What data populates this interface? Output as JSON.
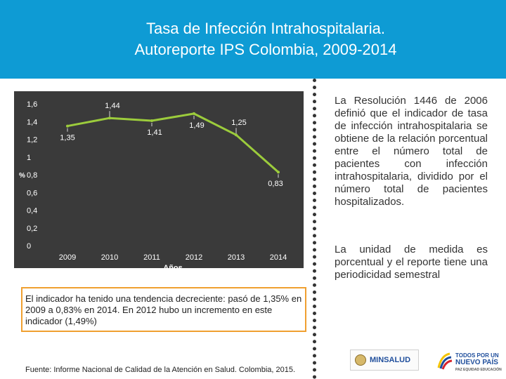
{
  "header": {
    "title_line1": "Tasa de Infección Intrahospitalaria.",
    "title_line2": "Autoreporte IPS Colombia, 2009-2014",
    "bg_color": "#0e9bd4"
  },
  "chart_data": {
    "type": "line",
    "title": "",
    "xlabel": "Años",
    "ylabel": "%",
    "categories": [
      "2009",
      "2010",
      "2011",
      "2012",
      "2013",
      "2014"
    ],
    "values": [
      1.35,
      1.44,
      1.41,
      1.49,
      1.25,
      0.83
    ],
    "data_labels": [
      "1,35",
      "1,44",
      "1,41",
      "1,49",
      "1,25",
      "0,83"
    ],
    "y_ticks": [
      "0",
      "0,2",
      "0,4",
      "0,6",
      "0,8",
      "1",
      "1,2",
      "1,4",
      "1,6"
    ],
    "ylim": [
      0,
      1.6
    ],
    "grid": false,
    "colors": {
      "line": "#9ccc3c",
      "background": "#3a3a3a",
      "text": "#ffffff"
    }
  },
  "side_text": {
    "paragraph1": "La Resolución 1446 de 2006 definió que el indicador de tasa de infección intrahospitalaria se obtiene de la relación porcentual entre el número total de pacientes con infección intrahospitalaria, dividido por el número total de pacientes hospitalizados.",
    "paragraph2": "La unidad de medida es porcentual y el reporte tiene una periodicidad semestral"
  },
  "note": {
    "text": "El indicador ha tenido una tendencia decreciente: pasó de 1,35% en 2009 a 0,83% en 2014. En 2012 hubo un incremento en este indicador (1,49%)",
    "border_color": "#f0a030"
  },
  "source": "Fuente: Informe Nacional de Calidad de la Atención en Salud. Colombia, 2015.",
  "logos": {
    "minsalud": "MINSALUD",
    "pais_line1": "TODOS POR UN",
    "pais_line2": "NUEVO PAÍS",
    "pais_line3": "PAZ EQUIDAD EDUCACIÓN"
  }
}
